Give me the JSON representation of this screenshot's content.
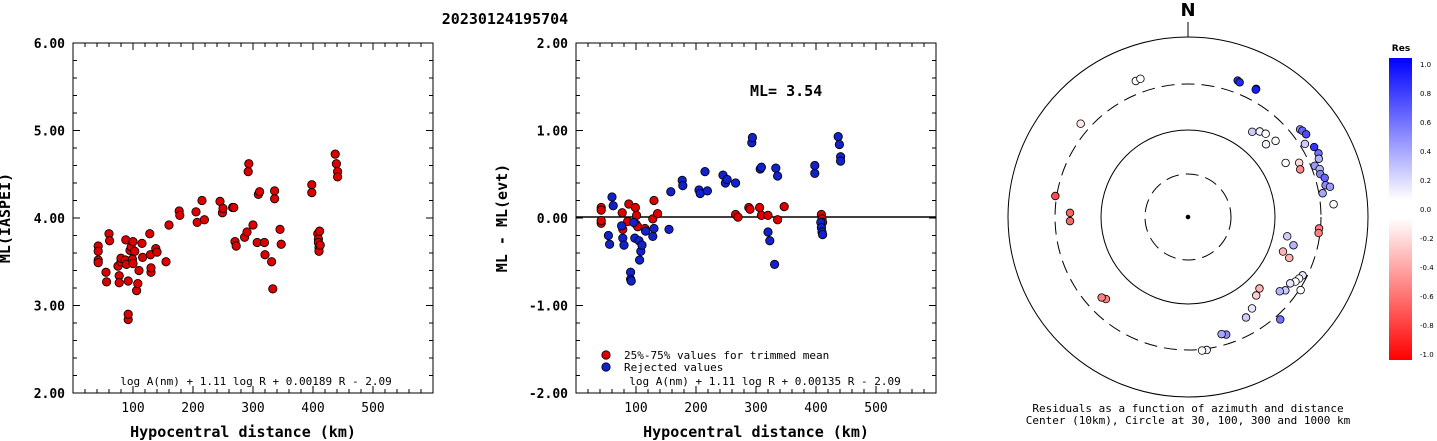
{
  "title": "20230124195704",
  "chart_data": [
    {
      "type": "scatter",
      "ylabel": "ML(IASPEI)",
      "xlabel": "Hypocentral distance (km)",
      "xlim": [
        0,
        600
      ],
      "ylim": [
        2.0,
        6.0
      ],
      "xticks": [
        "100",
        "200",
        "300",
        "400",
        "500"
      ],
      "yticks": [
        "2.00",
        "3.00",
        "4.00",
        "5.00",
        "6.00"
      ],
      "formula": "log A(nm) + 1.11 log R + 0.00189 R - 2.09",
      "point_color": "#dd0000",
      "points": [
        [
          42,
          3.68
        ],
        [
          42,
          3.62
        ],
        [
          42,
          3.52
        ],
        [
          42,
          3.49
        ],
        [
          55,
          3.38
        ],
        [
          56,
          3.27
        ],
        [
          60,
          3.82
        ],
        [
          61,
          3.74
        ],
        [
          75,
          3.45
        ],
        [
          77,
          3.34
        ],
        [
          77,
          3.26
        ],
        [
          80,
          3.5
        ],
        [
          80,
          3.54
        ],
        [
          87,
          3.52
        ],
        [
          88,
          3.75
        ],
        [
          89,
          3.47
        ],
        [
          92,
          2.84
        ],
        [
          92,
          2.9
        ],
        [
          92,
          3.28
        ],
        [
          95,
          3.63
        ],
        [
          97,
          3.67
        ],
        [
          99,
          3.53
        ],
        [
          100,
          3.73
        ],
        [
          100,
          3.48
        ],
        [
          103,
          3.62
        ],
        [
          106,
          3.17
        ],
        [
          108,
          3.25
        ],
        [
          110,
          3.4
        ],
        [
          115,
          3.71
        ],
        [
          116,
          3.55
        ],
        [
          128,
          3.82
        ],
        [
          129,
          3.58
        ],
        [
          130,
          3.38
        ],
        [
          130,
          3.43
        ],
        [
          138,
          3.65
        ],
        [
          140,
          3.61
        ],
        [
          155,
          3.5
        ],
        [
          160,
          3.92
        ],
        [
          177,
          4.08
        ],
        [
          178,
          4.03
        ],
        [
          205,
          4.07
        ],
        [
          207,
          3.95
        ],
        [
          215,
          4.2
        ],
        [
          219,
          3.98
        ],
        [
          245,
          4.19
        ],
        [
          249,
          4.06
        ],
        [
          250,
          4.11
        ],
        [
          266,
          4.12
        ],
        [
          268,
          4.12
        ],
        [
          270,
          3.73
        ],
        [
          272,
          3.68
        ],
        [
          286,
          3.78
        ],
        [
          290,
          3.84
        ],
        [
          292,
          4.53
        ],
        [
          293,
          4.62
        ],
        [
          300,
          3.92
        ],
        [
          307,
          3.72
        ],
        [
          309,
          4.27
        ],
        [
          311,
          4.3
        ],
        [
          319,
          3.72
        ],
        [
          320,
          3.58
        ],
        [
          331,
          3.5
        ],
        [
          333,
          3.19
        ],
        [
          336,
          4.22
        ],
        [
          336,
          4.31
        ],
        [
          345,
          3.87
        ],
        [
          347,
          3.7
        ],
        [
          398,
          4.38
        ],
        [
          398,
          4.29
        ],
        [
          408,
          3.82
        ],
        [
          409,
          3.76
        ],
        [
          409,
          3.72
        ],
        [
          410,
          3.66
        ],
        [
          410,
          3.62
        ],
        [
          411,
          3.85
        ],
        [
          412,
          3.69
        ],
        [
          437,
          4.73
        ],
        [
          439,
          4.62
        ],
        [
          441,
          4.53
        ],
        [
          441,
          4.47
        ]
      ]
    },
    {
      "type": "scatter",
      "ylabel": "ML - ML(evt)",
      "xlabel": "Hypocentral distance (km)",
      "xlim": [
        0,
        600
      ],
      "ylim": [
        -2.0,
        2.0
      ],
      "xticks": [
        "100",
        "200",
        "300",
        "400",
        "500"
      ],
      "yticks": [
        "-2.00",
        "-1.00",
        "0.00",
        "1.00",
        "2.00"
      ],
      "annotation": "ML= 3.54",
      "formula": "log A(nm) + 1.11 log R + 0.00135 R - 2.09",
      "legend": [
        {
          "label": "25%-75% values for trimmed mean",
          "color": "#dd0000"
        },
        {
          "label": "Rejected values",
          "color": "#1122cc"
        }
      ],
      "series": [
        {
          "name": "25%-75% values for trimmed mean",
          "color": "#dd0000",
          "points": [
            [
              42,
              0.12
            ],
            [
              42,
              0.09
            ],
            [
              42,
              -0.06
            ],
            [
              42,
              -0.03
            ],
            [
              77,
              0.06
            ],
            [
              78,
              -0.13
            ],
            [
              86,
              -0.04
            ],
            [
              88,
              0.16
            ],
            [
              99,
              0.12
            ],
            [
              100,
              -0.07
            ],
            [
              101,
              0.03
            ],
            [
              103,
              -0.1
            ],
            [
              115,
              -0.12
            ],
            [
              128,
              -0.01
            ],
            [
              130,
              0.2
            ],
            [
              136,
              0.05
            ],
            [
              266,
              0.04
            ],
            [
              270,
              0.01
            ],
            [
              288,
              0.12
            ],
            [
              290,
              0.1
            ],
            [
              306,
              0.12
            ],
            [
              309,
              0.03
            ],
            [
              320,
              0.03
            ],
            [
              336,
              -0.02
            ],
            [
              347,
              0.13
            ],
            [
              409,
              0.04
            ],
            [
              410,
              -0.01
            ],
            [
              411,
              -0.05
            ]
          ]
        },
        {
          "name": "Rejected values",
          "color": "#1122cc",
          "points": [
            [
              54,
              -0.2
            ],
            [
              56,
              -0.3
            ],
            [
              60,
              0.24
            ],
            [
              62,
              0.14
            ],
            [
              76,
              -0.09
            ],
            [
              78,
              -0.23
            ],
            [
              80,
              -0.31
            ],
            [
              91,
              -0.62
            ],
            [
              91,
              -0.7
            ],
            [
              92,
              -0.72
            ],
            [
              96,
              -0.05
            ],
            [
              98,
              -0.23
            ],
            [
              105,
              -0.26
            ],
            [
              106,
              -0.48
            ],
            [
              108,
              -0.38
            ],
            [
              110,
              -0.31
            ],
            [
              116,
              -0.15
            ],
            [
              128,
              -0.21
            ],
            [
              130,
              -0.12
            ],
            [
              155,
              -0.13
            ],
            [
              158,
              0.3
            ],
            [
              177,
              0.43
            ],
            [
              178,
              0.37
            ],
            [
              205,
              0.32
            ],
            [
              207,
              0.28
            ],
            [
              215,
              0.53
            ],
            [
              219,
              0.31
            ],
            [
              245,
              0.49
            ],
            [
              249,
              0.4
            ],
            [
              252,
              0.44
            ],
            [
              266,
              0.4
            ],
            [
              293,
              0.86
            ],
            [
              294,
              0.92
            ],
            [
              307,
              0.56
            ],
            [
              309,
              0.58
            ],
            [
              320,
              -0.16
            ],
            [
              323,
              -0.26
            ],
            [
              331,
              -0.53
            ],
            [
              333,
              0.57
            ],
            [
              336,
              0.48
            ],
            [
              398,
              0.6
            ],
            [
              398,
              0.51
            ],
            [
              408,
              -0.05
            ],
            [
              409,
              -0.11
            ],
            [
              410,
              -0.16
            ],
            [
              411,
              -0.19
            ],
            [
              437,
              0.93
            ],
            [
              439,
              0.84
            ],
            [
              441,
              0.7
            ],
            [
              441,
              0.65
            ]
          ]
        }
      ]
    },
    {
      "type": "polar-scatter",
      "north_label": "N",
      "caption_1": "Residuals as a function of azimuth and distance",
      "caption_2": "Center (10km), Circle at 30, 100, 300 and 1000 km",
      "colorbar": {
        "title": "Res",
        "ticks": [
          "1.0",
          "0.8",
          "0.6",
          "0.4",
          "0.2",
          "0.0",
          "-0.2",
          "-0.4",
          "-0.6",
          "-0.8",
          "-1.0"
        ],
        "max_color": "#0000ff",
        "mid_color": "#ffffff",
        "min_color": "#ff0000"
      },
      "points": [
        {
          "az": 339,
          "dist": 415,
          "res": 0.0
        },
        {
          "az": 341,
          "dist": 420,
          "res": 0.0
        },
        {
          "az": 311,
          "dist": 380,
          "res": -0.1
        },
        {
          "az": 20,
          "dist": 410,
          "res": 0.85
        },
        {
          "az": 21,
          "dist": 400,
          "res": 0.85
        },
        {
          "az": 28,
          "dist": 410,
          "res": 0.9
        },
        {
          "az": 28,
          "dist": 400,
          "res": 0.9
        },
        {
          "az": 52,
          "dist": 380,
          "res": 0.45
        },
        {
          "az": 53,
          "dist": 390,
          "res": 0.6
        },
        {
          "az": 55,
          "dist": 400,
          "res": 0.7
        },
        {
          "az": 58,
          "dist": 340,
          "res": 0.2
        },
        {
          "az": 61,
          "dist": 400,
          "res": 0.8
        },
        {
          "az": 64,
          "dist": 410,
          "res": 0.55
        },
        {
          "az": 66,
          "dist": 390,
          "res": 0.3
        },
        {
          "az": 68,
          "dist": 330,
          "res": 0.4
        },
        {
          "az": 70,
          "dist": 360,
          "res": 0.3
        },
        {
          "az": 72,
          "dist": 350,
          "res": 0.5
        },
        {
          "az": 74,
          "dist": 380,
          "res": 0.6
        },
        {
          "az": 77,
          "dist": 370,
          "res": 0.45
        },
        {
          "az": 78,
          "dist": 410,
          "res": 0.4
        },
        {
          "az": 85,
          "dist": 420,
          "res": 0.0
        },
        {
          "az": 80,
          "dist": 330,
          "res": 0.35
        },
        {
          "az": 37,
          "dist": 160,
          "res": 0.2
        },
        {
          "az": 40,
          "dist": 180,
          "res": 0.05
        },
        {
          "az": 43,
          "dist": 190,
          "res": 0.0
        },
        {
          "az": 47,
          "dist": 160,
          "res": 0.05
        },
        {
          "az": 49,
          "dist": 200,
          "res": 0.0
        },
        {
          "az": 61,
          "dist": 180,
          "res": 0.0
        },
        {
          "az": 64,
          "dist": 240,
          "res": -0.15
        },
        {
          "az": 67,
          "dist": 230,
          "res": -0.45
        },
        {
          "az": 95,
          "dist": 290,
          "res": -0.5
        },
        {
          "az": 97,
          "dist": 290,
          "res": -0.5
        },
        {
          "az": 101,
          "dist": 140,
          "res": 0.2
        },
        {
          "az": 105,
          "dist": 170,
          "res": 0.3
        },
        {
          "az": 110,
          "dist": 140,
          "res": -0.3
        },
        {
          "az": 112,
          "dist": 170,
          "res": -0.3
        },
        {
          "az": 117,
          "dist": 270,
          "res": 0.1
        },
        {
          "az": 119,
          "dist": 260,
          "res": 0.0
        },
        {
          "az": 121,
          "dist": 250,
          "res": 0.0
        },
        {
          "az": 123,
          "dist": 230,
          "res": 0.1
        },
        {
          "az": 123,
          "dist": 310,
          "res": 0.0
        },
        {
          "az": 127,
          "dist": 230,
          "res": 0.2
        },
        {
          "az": 129,
          "dist": 210,
          "res": 0.3
        },
        {
          "az": 135,
          "dist": 140,
          "res": -0.3
        },
        {
          "az": 139,
          "dist": 150,
          "res": -0.2
        },
        {
          "az": 138,
          "dist": 340,
          "res": 0.55
        },
        {
          "az": 145,
          "dist": 180,
          "res": 0.1
        },
        {
          "az": 150,
          "dist": 200,
          "res": 0.2
        },
        {
          "az": 162,
          "dist": 240,
          "res": 0.45
        },
        {
          "az": 164,
          "dist": 230,
          "res": 0.35
        },
        {
          "az": 172,
          "dist": 310,
          "res": 0.05
        },
        {
          "az": 174,
          "dist": 310,
          "res": 0.0
        },
        {
          "az": 225,
          "dist": 200,
          "res": -0.5
        },
        {
          "az": 227,
          "dist": 210,
          "res": -0.5
        },
        {
          "az": 268,
          "dist": 210,
          "res": -0.6
        },
        {
          "az": 272,
          "dist": 210,
          "res": -0.6
        },
        {
          "az": 279,
          "dist": 310,
          "res": -0.7
        }
      ]
    }
  ]
}
